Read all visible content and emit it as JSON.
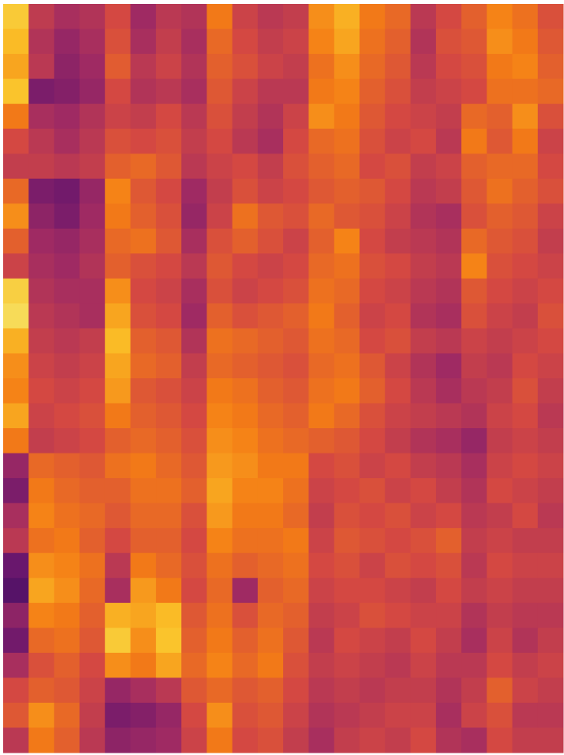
{
  "chart_data": {
    "type": "heatmap",
    "colormap": "inferno",
    "clim": [
      0,
      1
    ],
    "values": [
      [
        0.78,
        0.45,
        0.4,
        0.42,
        0.5,
        0.38,
        0.44,
        0.42,
        0.62,
        0.48,
        0.44,
        0.46,
        0.66,
        0.72,
        0.62,
        0.58,
        0.44,
        0.5,
        0.56,
        0.64,
        0.6,
        0.52
      ],
      [
        0.74,
        0.42,
        0.36,
        0.4,
        0.52,
        0.4,
        0.46,
        0.4,
        0.58,
        0.5,
        0.46,
        0.48,
        0.64,
        0.7,
        0.6,
        0.56,
        0.42,
        0.52,
        0.54,
        0.66,
        0.62,
        0.54
      ],
      [
        0.7,
        0.44,
        0.34,
        0.38,
        0.55,
        0.44,
        0.48,
        0.42,
        0.56,
        0.52,
        0.48,
        0.46,
        0.6,
        0.66,
        0.58,
        0.54,
        0.44,
        0.5,
        0.52,
        0.62,
        0.64,
        0.56
      ],
      [
        0.76,
        0.3,
        0.32,
        0.36,
        0.5,
        0.42,
        0.44,
        0.4,
        0.54,
        0.48,
        0.44,
        0.44,
        0.62,
        0.64,
        0.56,
        0.52,
        0.46,
        0.48,
        0.5,
        0.6,
        0.6,
        0.58
      ],
      [
        0.62,
        0.4,
        0.38,
        0.42,
        0.48,
        0.46,
        0.5,
        0.44,
        0.52,
        0.46,
        0.42,
        0.48,
        0.66,
        0.62,
        0.54,
        0.5,
        0.48,
        0.46,
        0.58,
        0.56,
        0.66,
        0.52
      ],
      [
        0.5,
        0.44,
        0.4,
        0.44,
        0.52,
        0.5,
        0.52,
        0.46,
        0.5,
        0.44,
        0.4,
        0.5,
        0.58,
        0.6,
        0.52,
        0.48,
        0.5,
        0.44,
        0.62,
        0.54,
        0.62,
        0.48
      ],
      [
        0.46,
        0.46,
        0.44,
        0.46,
        0.56,
        0.58,
        0.54,
        0.44,
        0.48,
        0.5,
        0.46,
        0.52,
        0.56,
        0.58,
        0.5,
        0.52,
        0.46,
        0.48,
        0.56,
        0.58,
        0.58,
        0.5
      ],
      [
        0.58,
        0.3,
        0.28,
        0.36,
        0.64,
        0.54,
        0.5,
        0.38,
        0.46,
        0.52,
        0.48,
        0.5,
        0.54,
        0.56,
        0.54,
        0.5,
        0.44,
        0.46,
        0.54,
        0.6,
        0.56,
        0.52
      ],
      [
        0.66,
        0.34,
        0.3,
        0.38,
        0.62,
        0.56,
        0.52,
        0.36,
        0.48,
        0.6,
        0.54,
        0.52,
        0.58,
        0.54,
        0.52,
        0.48,
        0.42,
        0.4,
        0.52,
        0.56,
        0.54,
        0.48
      ],
      [
        0.56,
        0.38,
        0.36,
        0.4,
        0.58,
        0.6,
        0.54,
        0.4,
        0.52,
        0.56,
        0.52,
        0.48,
        0.56,
        0.64,
        0.5,
        0.46,
        0.44,
        0.42,
        0.58,
        0.54,
        0.52,
        0.46
      ],
      [
        0.48,
        0.4,
        0.38,
        0.42,
        0.56,
        0.52,
        0.5,
        0.44,
        0.54,
        0.5,
        0.48,
        0.5,
        0.58,
        0.6,
        0.52,
        0.5,
        0.46,
        0.44,
        0.64,
        0.52,
        0.5,
        0.48
      ],
      [
        0.8,
        0.42,
        0.4,
        0.4,
        0.66,
        0.5,
        0.48,
        0.4,
        0.52,
        0.48,
        0.5,
        0.52,
        0.6,
        0.58,
        0.5,
        0.48,
        0.44,
        0.42,
        0.54,
        0.5,
        0.48,
        0.5
      ],
      [
        0.84,
        0.44,
        0.42,
        0.4,
        0.7,
        0.52,
        0.5,
        0.38,
        0.56,
        0.52,
        0.54,
        0.56,
        0.62,
        0.56,
        0.48,
        0.5,
        0.42,
        0.4,
        0.52,
        0.48,
        0.46,
        0.52
      ],
      [
        0.72,
        0.46,
        0.44,
        0.46,
        0.74,
        0.56,
        0.54,
        0.42,
        0.6,
        0.58,
        0.56,
        0.54,
        0.6,
        0.58,
        0.5,
        0.52,
        0.46,
        0.44,
        0.48,
        0.46,
        0.48,
        0.5
      ],
      [
        0.66,
        0.48,
        0.46,
        0.48,
        0.7,
        0.58,
        0.56,
        0.46,
        0.58,
        0.56,
        0.54,
        0.52,
        0.58,
        0.6,
        0.54,
        0.48,
        0.42,
        0.38,
        0.46,
        0.44,
        0.5,
        0.48
      ],
      [
        0.64,
        0.5,
        0.48,
        0.5,
        0.68,
        0.54,
        0.52,
        0.48,
        0.62,
        0.6,
        0.56,
        0.54,
        0.6,
        0.62,
        0.56,
        0.5,
        0.44,
        0.4,
        0.44,
        0.46,
        0.52,
        0.46
      ],
      [
        0.7,
        0.48,
        0.5,
        0.52,
        0.62,
        0.56,
        0.54,
        0.5,
        0.64,
        0.62,
        0.58,
        0.56,
        0.62,
        0.58,
        0.52,
        0.48,
        0.46,
        0.44,
        0.42,
        0.48,
        0.5,
        0.44
      ],
      [
        0.62,
        0.46,
        0.48,
        0.5,
        0.56,
        0.58,
        0.56,
        0.52,
        0.66,
        0.64,
        0.6,
        0.58,
        0.56,
        0.54,
        0.5,
        0.46,
        0.42,
        0.4,
        0.36,
        0.46,
        0.48,
        0.46
      ],
      [
        0.36,
        0.58,
        0.56,
        0.54,
        0.6,
        0.62,
        0.58,
        0.54,
        0.68,
        0.66,
        0.62,
        0.62,
        0.5,
        0.52,
        0.48,
        0.5,
        0.46,
        0.44,
        0.4,
        0.48,
        0.5,
        0.48
      ],
      [
        0.3,
        0.62,
        0.58,
        0.56,
        0.56,
        0.6,
        0.6,
        0.56,
        0.7,
        0.64,
        0.64,
        0.6,
        0.48,
        0.5,
        0.52,
        0.48,
        0.5,
        0.46,
        0.42,
        0.5,
        0.48,
        0.46
      ],
      [
        0.4,
        0.64,
        0.6,
        0.58,
        0.54,
        0.58,
        0.58,
        0.52,
        0.68,
        0.62,
        0.62,
        0.58,
        0.46,
        0.52,
        0.5,
        0.52,
        0.48,
        0.5,
        0.44,
        0.46,
        0.5,
        0.44
      ],
      [
        0.44,
        0.6,
        0.62,
        0.56,
        0.5,
        0.56,
        0.56,
        0.5,
        0.64,
        0.6,
        0.6,
        0.62,
        0.48,
        0.54,
        0.52,
        0.5,
        0.52,
        0.56,
        0.46,
        0.48,
        0.46,
        0.46
      ],
      [
        0.26,
        0.66,
        0.64,
        0.6,
        0.44,
        0.62,
        0.58,
        0.52,
        0.6,
        0.56,
        0.58,
        0.6,
        0.5,
        0.52,
        0.48,
        0.52,
        0.5,
        0.52,
        0.44,
        0.5,
        0.48,
        0.48
      ],
      [
        0.22,
        0.7,
        0.66,
        0.58,
        0.4,
        0.68,
        0.62,
        0.5,
        0.58,
        0.38,
        0.56,
        0.58,
        0.48,
        0.5,
        0.5,
        0.48,
        0.46,
        0.5,
        0.46,
        0.48,
        0.46,
        0.46
      ],
      [
        0.34,
        0.64,
        0.62,
        0.56,
        0.72,
        0.7,
        0.74,
        0.54,
        0.6,
        0.52,
        0.58,
        0.56,
        0.46,
        0.48,
        0.52,
        0.5,
        0.48,
        0.48,
        0.42,
        0.46,
        0.44,
        0.44
      ],
      [
        0.28,
        0.58,
        0.6,
        0.54,
        0.78,
        0.66,
        0.76,
        0.56,
        0.62,
        0.56,
        0.6,
        0.54,
        0.44,
        0.5,
        0.48,
        0.46,
        0.5,
        0.46,
        0.4,
        0.48,
        0.42,
        0.46
      ],
      [
        0.4,
        0.52,
        0.56,
        0.5,
        0.66,
        0.62,
        0.7,
        0.58,
        0.64,
        0.58,
        0.62,
        0.52,
        0.46,
        0.48,
        0.46,
        0.44,
        0.48,
        0.44,
        0.44,
        0.5,
        0.46,
        0.48
      ],
      [
        0.5,
        0.56,
        0.54,
        0.48,
        0.36,
        0.4,
        0.44,
        0.54,
        0.58,
        0.54,
        0.56,
        0.5,
        0.44,
        0.46,
        0.44,
        0.46,
        0.46,
        0.42,
        0.46,
        0.56,
        0.48,
        0.46
      ],
      [
        0.54,
        0.66,
        0.58,
        0.46,
        0.3,
        0.32,
        0.36,
        0.5,
        0.66,
        0.52,
        0.54,
        0.48,
        0.42,
        0.44,
        0.46,
        0.48,
        0.48,
        0.4,
        0.48,
        0.52,
        0.44,
        0.44
      ],
      [
        0.44,
        0.62,
        0.56,
        0.44,
        0.34,
        0.36,
        0.38,
        0.48,
        0.62,
        0.5,
        0.52,
        0.46,
        0.4,
        0.46,
        0.48,
        0.46,
        0.5,
        0.42,
        0.4,
        0.5,
        0.46,
        0.46
      ]
    ]
  }
}
